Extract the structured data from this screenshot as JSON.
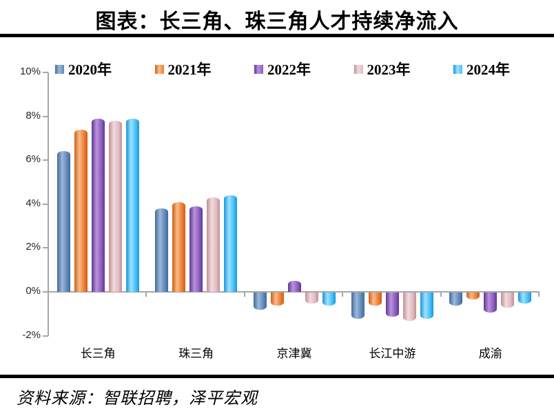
{
  "title": "图表：长三角、珠三角人才持续净流入",
  "source": "资料来源：智联招聘，泽平宏观",
  "chart_data": {
    "type": "bar",
    "title": "图表：长三角、珠三角人才持续净流入",
    "categories": [
      "长三角",
      "珠三角",
      "京津冀",
      "长江中游",
      "成渝"
    ],
    "series": [
      {
        "name": "2020年",
        "color": "#6089bb",
        "color_dark": "#41699e",
        "color_light": "#9db8d6",
        "values": [
          6.4,
          3.8,
          -0.8,
          -1.2,
          -0.6
        ]
      },
      {
        "name": "2021年",
        "color": "#ed7d31",
        "color_dark": "#cf5f14",
        "color_light": "#f8bc8c",
        "values": [
          7.4,
          4.1,
          -0.6,
          -0.6,
          -0.3
        ]
      },
      {
        "name": "2022年",
        "color": "#8c5bbf",
        "color_dark": "#5f3791",
        "color_light": "#b993dc",
        "values": [
          7.9,
          3.9,
          0.5,
          -1.1,
          -0.9
        ]
      },
      {
        "name": "2023年",
        "color": "#debcc1",
        "color_dark": "#c28e96",
        "color_light": "#f2dadd",
        "values": [
          7.8,
          4.3,
          -0.5,
          -1.3,
          -0.7
        ]
      },
      {
        "name": "2024年",
        "color": "#44c0f6",
        "color_dark": "#1795dd",
        "color_light": "#9fe2fd",
        "values": [
          7.9,
          4.4,
          -0.6,
          -1.2,
          -0.5
        ]
      }
    ],
    "xlabel": "",
    "ylabel": "",
    "ylim": [
      -2,
      10
    ],
    "y_tick_values": [
      10,
      8,
      6,
      4,
      2,
      0,
      -2
    ],
    "y_tick_labels": [
      "10%",
      "8%",
      "6%",
      "4%",
      "2%",
      "0%",
      "-2%"
    ],
    "grid": false,
    "legend_position": "top",
    "axis_color": "#a6a6a6"
  }
}
